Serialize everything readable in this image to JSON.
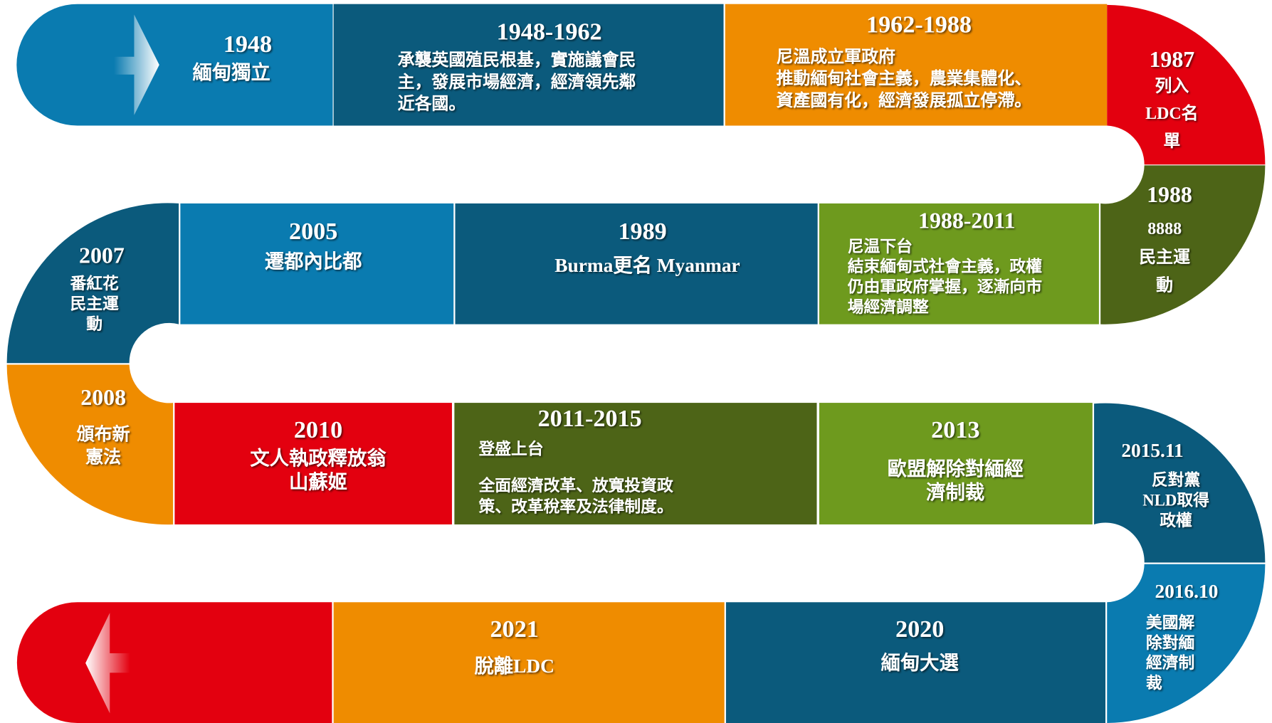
{
  "events": [
    {
      "date": "1948",
      "lines": [
        "緬甸獨立"
      ]
    },
    {
      "date": "1948-1962",
      "lines": [
        "承襲英國殖民根基，實施議會民",
        "主，發展市場經濟，經濟領先鄰",
        "近各國。"
      ]
    },
    {
      "date": "1962-1988",
      "title": "尼溫成立軍政府",
      "lines": [
        "推動緬甸社會主義，農業集體化、",
        "資產國有化，經濟發展孤立停滯。"
      ]
    },
    {
      "date": "1987",
      "lines": [
        "列入",
        "LDC名",
        "單"
      ]
    },
    {
      "date": "1988",
      "lines": [
        "8888",
        "民主運",
        "動"
      ]
    },
    {
      "date": "1988-2011",
      "title": "尼温下台",
      "lines": [
        "結束緬甸式社會主義，政權",
        "仍由軍政府掌握，逐漸向市",
        "場經濟調整"
      ]
    },
    {
      "date": "1989",
      "lines": [
        "Burma更名 Myanmar"
      ]
    },
    {
      "date": "2005",
      "lines": [
        "遷都內比都"
      ]
    },
    {
      "date": "2007",
      "lines": [
        "番紅花",
        "民主運",
        "動"
      ]
    },
    {
      "date": "2008",
      "lines": [
        "頒布新",
        "憲法"
      ]
    },
    {
      "date": "2010",
      "lines": [
        "文人執政釋放翁",
        "山蘇姬"
      ]
    },
    {
      "date": "2011-2015",
      "title": "登盛上台",
      "lines": [
        "全面經濟改革、放寬投資政",
        "策、改革稅率及法律制度。"
      ]
    },
    {
      "date": "2013",
      "lines": [
        "歐盟解除對緬經",
        "濟制裁"
      ]
    },
    {
      "date": "2015.11",
      "lines": [
        "反對黨",
        "NLD取得",
        "政權"
      ]
    },
    {
      "date": "2016.10",
      "lines": [
        "美國解",
        "除對緬",
        "經濟制",
        "裁"
      ]
    },
    {
      "date": "2020",
      "lines": [
        "緬甸大選"
      ]
    },
    {
      "date": "2021",
      "lines": [
        "脫離LDC"
      ]
    }
  ]
}
